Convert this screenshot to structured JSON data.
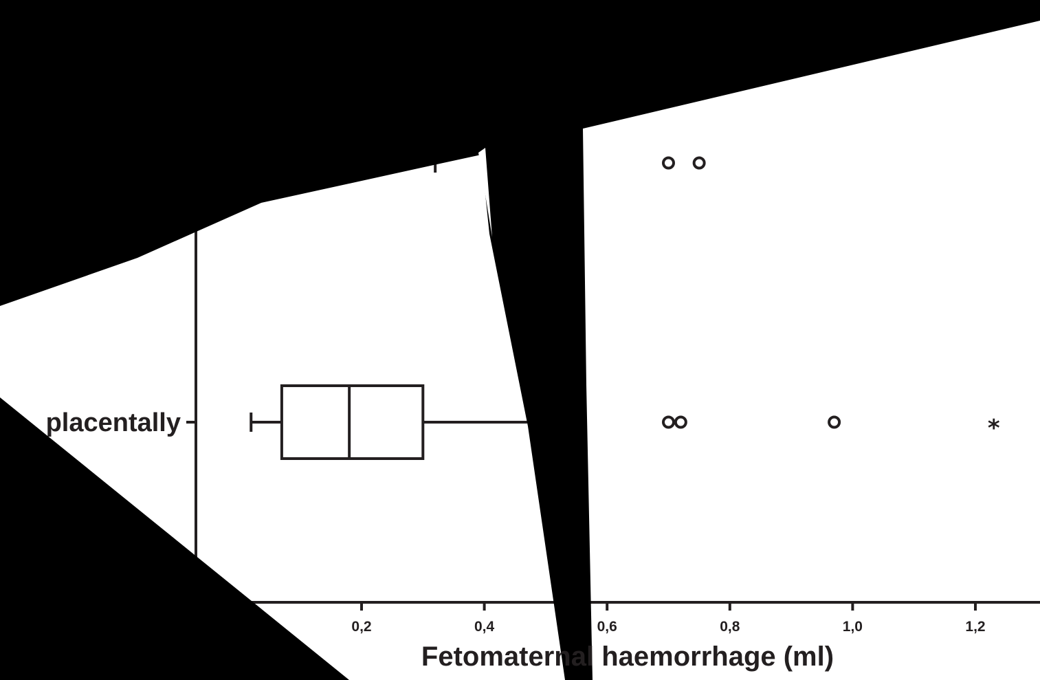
{
  "chart_data": {
    "type": "boxplot",
    "orientation": "horizontal",
    "xlabel": "Fetomaternal haemorrhage (ml)",
    "xlim": [
      -0.07,
      1.33
    ],
    "x_ticks": [
      0.2,
      0.4,
      0.6,
      0.8,
      1.0,
      1.2
    ],
    "x_tick_labels": [
      "0,2",
      "0,4",
      "0,6",
      "0,8",
      "1,0",
      "1,2"
    ],
    "categories": [
      {
        "label": "",
        "whisker_high": 0.32,
        "outliers": [
          0.7,
          0.75
        ],
        "extremes": []
      },
      {
        "label": "placentally",
        "whisker_low": 0.02,
        "q1": 0.07,
        "median": 0.18,
        "q3": 0.3,
        "whisker_high": 0.47,
        "outliers": [
          0.7,
          0.72,
          0.97
        ],
        "extremes": [
          1.23
        ]
      }
    ],
    "outlier_marker": "circle",
    "extreme_marker": "asterisk",
    "grid": false,
    "colors": {
      "ink": "#231f20",
      "background": "#ffffff",
      "occlusion": "#000000"
    }
  }
}
